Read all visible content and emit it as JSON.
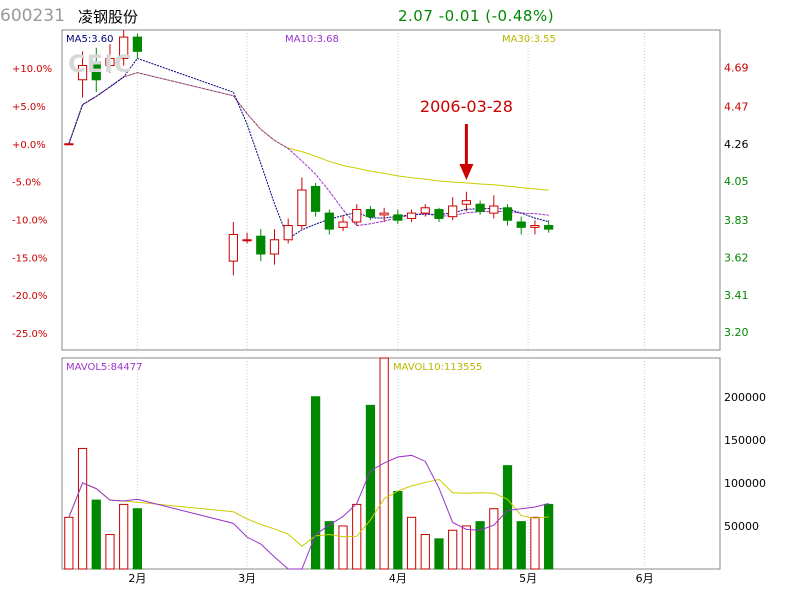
{
  "header": {
    "code": "600231",
    "name": "凌钢股份",
    "price": "2.07",
    "change": "-0.01",
    "change_pct": "(-0.48%)"
  },
  "watermark": "CEIC",
  "colors": {
    "up": "#cc0000",
    "down": "#008800",
    "ma5": "#000080",
    "ma10": "#9933cc",
    "ma30": "#cccc00",
    "grid": "#cccccc"
  },
  "chart_data": [
    {
      "type": "candlestick",
      "legend": {
        "ma5": "MA5:3.60",
        "ma10": "MA10:3.68",
        "ma30": "MA30:3.55"
      },
      "annotation": {
        "label": "2006-03-28",
        "x": 29.0
      },
      "left_axis": {
        "ticks": [
          10,
          5,
          0,
          -5,
          -10,
          -15,
          -20,
          -25
        ],
        "labels": [
          "+10.0%",
          "+5.0%",
          "+0.0%",
          "-5.0%",
          "-10.0%",
          "-15.0%",
          "-20.0%",
          "-25.0%"
        ]
      },
      "right_axis": {
        "ticks": [
          4.69,
          4.47,
          4.26,
          4.05,
          3.83,
          3.62,
          3.41,
          3.2
        ],
        "labels": [
          "4.69",
          "4.47",
          "4.26",
          "4.05",
          "3.83",
          "3.62",
          "3.41",
          "3.20"
        ]
      },
      "ylim": [
        3.1,
        4.9
      ],
      "x_labels": [
        {
          "x": 5.0,
          "label": "2月"
        },
        {
          "x": 13.0,
          "label": "3月"
        },
        {
          "x": 24.0,
          "label": "4月"
        },
        {
          "x": 33.5,
          "label": "5月"
        },
        {
          "x": 42.0,
          "label": "6月"
        }
      ],
      "x_range": [
        -0.5,
        47.5
      ],
      "candles": [
        {
          "x": 0,
          "o": 4.26,
          "c": 4.26,
          "h": 4.26,
          "l": 4.26
        },
        {
          "x": 1,
          "o": 4.62,
          "c": 4.7,
          "h": 4.78,
          "l": 4.52
        },
        {
          "x": 2,
          "o": 4.72,
          "c": 4.62,
          "h": 4.8,
          "l": 4.55
        },
        {
          "x": 3,
          "o": 4.7,
          "c": 4.74,
          "h": 4.82,
          "l": 4.66
        },
        {
          "x": 4,
          "o": 4.74,
          "c": 4.86,
          "h": 4.9,
          "l": 4.7
        },
        {
          "x": 5,
          "o": 4.86,
          "c": 4.78,
          "h": 4.88,
          "l": 4.74
        },
        {
          "x": 12,
          "o": 3.6,
          "c": 3.75,
          "h": 3.82,
          "l": 3.52
        },
        {
          "x": 13,
          "o": 3.72,
          "c": 3.72,
          "h": 3.76,
          "l": 3.7
        },
        {
          "x": 14,
          "o": 3.74,
          "c": 3.64,
          "h": 3.78,
          "l": 3.6
        },
        {
          "x": 15,
          "o": 3.64,
          "c": 3.72,
          "h": 3.78,
          "l": 3.58
        },
        {
          "x": 16,
          "o": 3.72,
          "c": 3.8,
          "h": 3.84,
          "l": 3.7
        },
        {
          "x": 17,
          "o": 3.8,
          "c": 4.0,
          "h": 4.07,
          "l": 3.78
        },
        {
          "x": 18,
          "o": 4.02,
          "c": 3.88,
          "h": 4.04,
          "l": 3.85
        },
        {
          "x": 19,
          "o": 3.87,
          "c": 3.78,
          "h": 3.89,
          "l": 3.75
        },
        {
          "x": 20,
          "o": 3.79,
          "c": 3.82,
          "h": 3.86,
          "l": 3.77
        },
        {
          "x": 21,
          "o": 3.82,
          "c": 3.89,
          "h": 3.92,
          "l": 3.8
        },
        {
          "x": 22,
          "o": 3.89,
          "c": 3.85,
          "h": 3.91,
          "l": 3.83
        },
        {
          "x": 23,
          "o": 3.86,
          "c": 3.87,
          "h": 3.9,
          "l": 3.82
        },
        {
          "x": 24,
          "o": 3.86,
          "c": 3.83,
          "h": 3.89,
          "l": 3.81
        },
        {
          "x": 25,
          "o": 3.84,
          "c": 3.87,
          "h": 3.89,
          "l": 3.82
        },
        {
          "x": 26,
          "o": 3.87,
          "c": 3.9,
          "h": 3.92,
          "l": 3.85
        },
        {
          "x": 27,
          "o": 3.89,
          "c": 3.84,
          "h": 3.9,
          "l": 3.82
        },
        {
          "x": 28,
          "o": 3.85,
          "c": 3.91,
          "h": 3.96,
          "l": 3.83
        },
        {
          "x": 29,
          "o": 3.92,
          "c": 3.94,
          "h": 3.99,
          "l": 3.88
        },
        {
          "x": 30,
          "o": 3.92,
          "c": 3.88,
          "h": 3.94,
          "l": 3.86
        },
        {
          "x": 31,
          "o": 3.87,
          "c": 3.91,
          "h": 3.97,
          "l": 3.84
        },
        {
          "x": 32,
          "o": 3.9,
          "c": 3.83,
          "h": 3.92,
          "l": 3.8
        },
        {
          "x": 33,
          "o": 3.82,
          "c": 3.79,
          "h": 3.85,
          "l": 3.75
        },
        {
          "x": 34,
          "o": 3.79,
          "c": 3.8,
          "h": 3.83,
          "l": 3.75
        },
        {
          "x": 35,
          "o": 3.8,
          "c": 3.78,
          "h": 3.83,
          "l": 3.76
        }
      ],
      "ma5": [],
      "ma10": [],
      "ma30": []
    },
    {
      "type": "bar",
      "legend": {
        "mavol5": "MAVOL5:84477",
        "mavol10": "MAVOL10:113555"
      },
      "right_axis": {
        "ticks": [
          200000,
          150000,
          100000,
          50000
        ],
        "labels": [
          "200000",
          "150000",
          "100000",
          "50000"
        ]
      },
      "ylim": [
        0,
        245000
      ],
      "values": [],
      "up": [],
      "mavol5": [],
      "mavol10": []
    }
  ]
}
